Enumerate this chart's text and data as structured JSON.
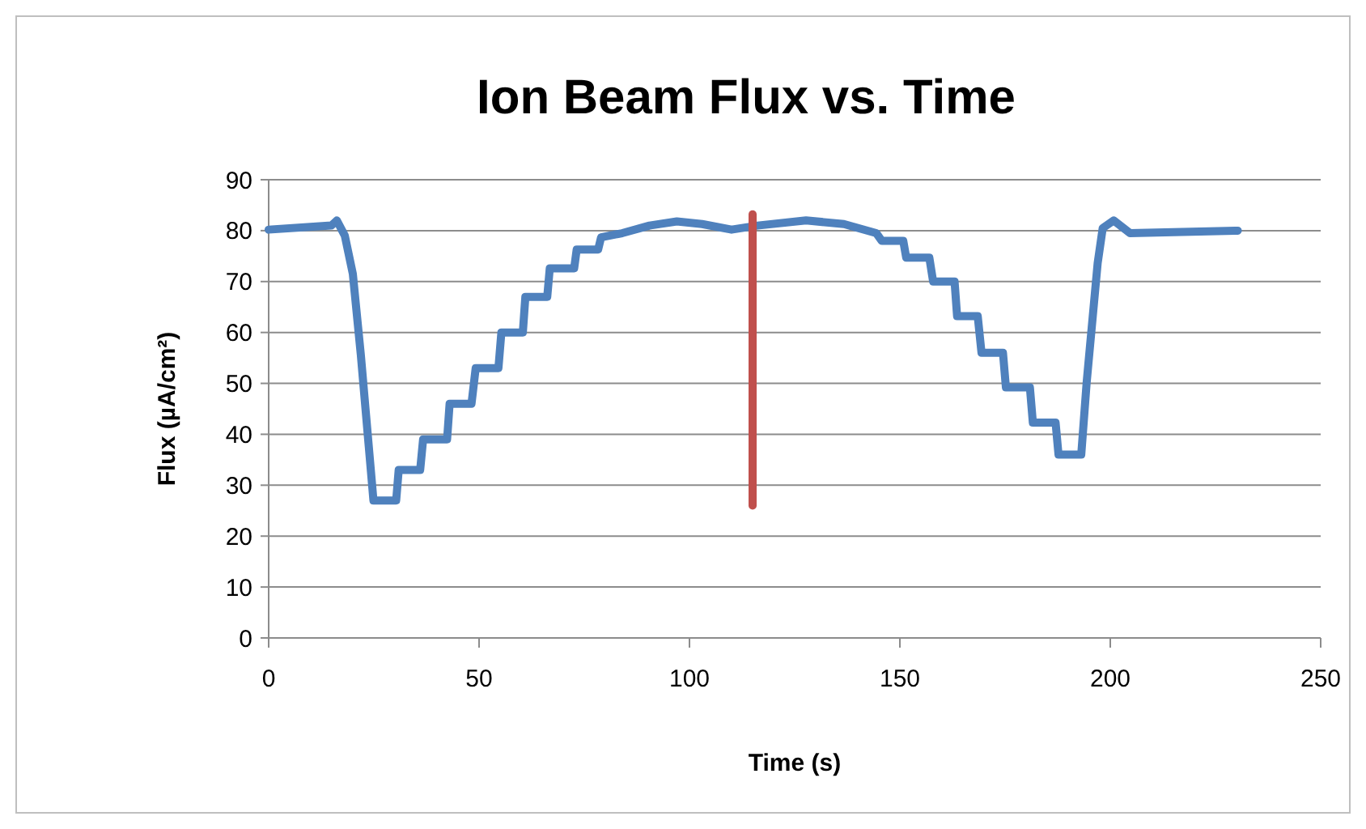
{
  "chart_data": {
    "type": "line",
    "title": "Ion Beam Flux vs. Time",
    "xlabel": "Time (s)",
    "ylabel": "Flux (µA/cm²)",
    "xlim": [
      0,
      250
    ],
    "xticks": [
      0,
      50,
      100,
      150,
      200,
      250
    ],
    "ylim": [
      0,
      90
    ],
    "yticks": [
      0,
      10,
      20,
      30,
      40,
      50,
      60,
      70,
      80,
      90
    ],
    "grid": "y",
    "marker": "none",
    "line_style": "solid",
    "series": [
      {
        "color": "#4f81bd",
        "x": [
          0,
          14.9,
          16.2,
          18.1,
          20,
          21.9,
          23.8,
          24.9,
          30.3,
          30.9,
          36,
          36.7,
          42.4,
          43,
          48.2,
          49.2,
          54.6,
          55.3,
          60.4,
          61,
          66.2,
          66.8,
          72.6,
          73.2,
          78.3,
          79,
          84,
          90.5,
          97,
          103,
          110,
          116.2,
          127.7,
          136.7,
          144.4,
          145.7,
          150.8,
          151.5,
          157,
          157.9,
          163,
          163.6,
          168.5,
          169.4,
          174.5,
          175.2,
          180.9,
          181.6,
          187,
          187.7,
          193.1,
          194.4,
          197,
          198.2,
          200.8,
          204.7,
          230.3
        ],
        "values": [
          80.2,
          81,
          82,
          79,
          71.5,
          55.6,
          37.5,
          27,
          27,
          33,
          33,
          39,
          39,
          46,
          46,
          53,
          53,
          60,
          60,
          67,
          67,
          72.6,
          72.6,
          76.3,
          76.3,
          78.7,
          79.5,
          81,
          81.8,
          81.3,
          80.2,
          81,
          82,
          81.3,
          79.5,
          78,
          78,
          74.7,
          74.7,
          70,
          70,
          63.2,
          63.2,
          56,
          56,
          49.2,
          49.2,
          42.3,
          42.3,
          36,
          36,
          50.3,
          73.6,
          80.5,
          82,
          79.5,
          80
        ]
      },
      {
        "color": "#c0504d",
        "x": [
          115,
          115
        ],
        "values": [
          26,
          83.2
        ]
      }
    ]
  }
}
